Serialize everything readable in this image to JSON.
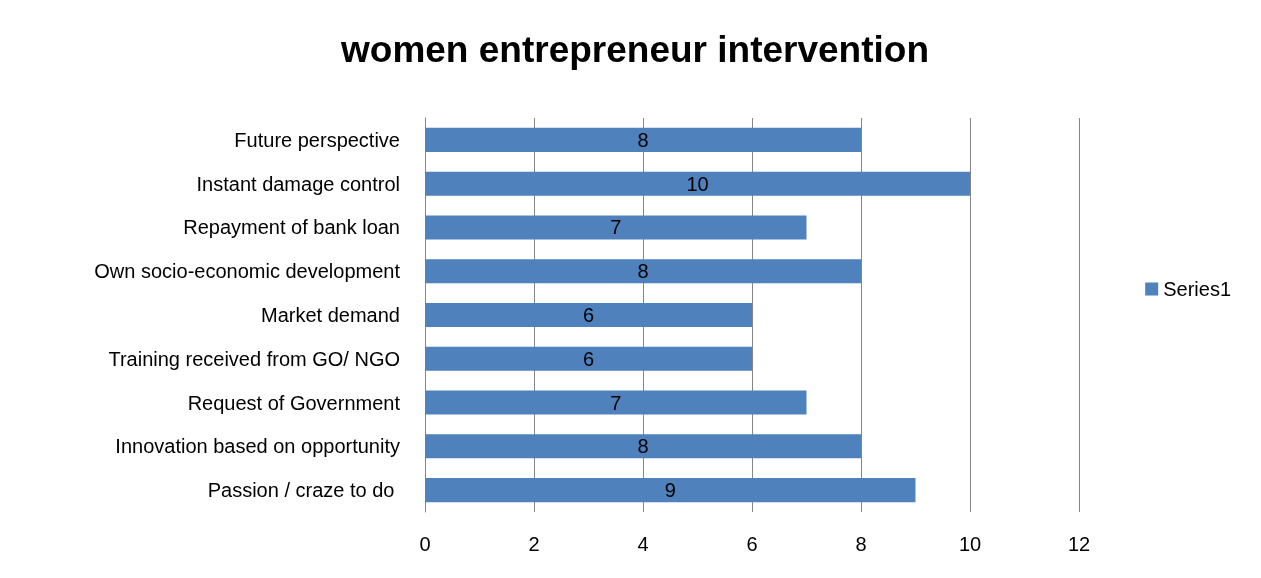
{
  "chart_data": {
    "type": "bar",
    "title": "women entrepreneur intervention",
    "orientation": "horizontal",
    "categories": [
      "Future perspective",
      "Instant damage control",
      "Repayment of bank loan",
      "Own socio-economic development",
      "Market demand",
      "Training received from GO/ NGO",
      "Request of Government",
      "Innovation based on opportunity",
      "Passion / craze to do "
    ],
    "series": [
      {
        "name": "Series1",
        "color": "#4f81bd",
        "values": [
          8,
          10,
          7,
          8,
          6,
          6,
          7,
          8,
          9
        ]
      }
    ],
    "xlim": [
      0,
      12
    ],
    "xticks": [
      0,
      2,
      4,
      6,
      8,
      10,
      12
    ],
    "grid": "x",
    "legend": "right",
    "data_labels": true
  }
}
